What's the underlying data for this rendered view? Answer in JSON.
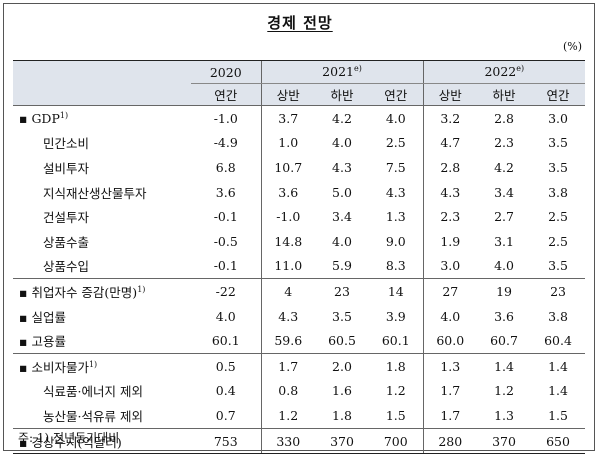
{
  "title": "경제 전망",
  "unit": "(%)",
  "header": {
    "y2020": "2020",
    "y2021": "2021",
    "y2021_sup": "e)",
    "y2022": "2022",
    "y2022_sup": "e)",
    "sub": [
      "연간",
      "상반",
      "하반",
      "연간",
      "상반",
      "하반",
      "연간"
    ]
  },
  "rows": [
    {
      "label": "▪ GDP",
      "sup": "1)",
      "values": [
        "-1.0",
        "3.7",
        "4.2",
        "4.0",
        "3.2",
        "2.8",
        "3.0"
      ]
    },
    {
      "label": "민간소비",
      "values": [
        "-4.9",
        "1.0",
        "4.0",
        "2.5",
        "4.7",
        "2.3",
        "3.5"
      ]
    },
    {
      "label": "설비투자",
      "values": [
        "6.8",
        "10.7",
        "4.3",
        "7.5",
        "2.8",
        "4.2",
        "3.5"
      ]
    },
    {
      "label": "지식재산생산물투자",
      "values": [
        "3.6",
        "3.6",
        "5.0",
        "4.3",
        "4.3",
        "3.4",
        "3.8"
      ]
    },
    {
      "label": "건설투자",
      "values": [
        "-0.1",
        "-1.0",
        "3.4",
        "1.3",
        "2.3",
        "2.7",
        "2.5"
      ]
    },
    {
      "label": "상품수출",
      "values": [
        "-0.5",
        "14.8",
        "4.0",
        "9.0",
        "1.9",
        "3.1",
        "2.5"
      ]
    },
    {
      "label": "상품수입",
      "values": [
        "-0.1",
        "11.0",
        "5.9",
        "8.3",
        "3.0",
        "4.0",
        "3.5"
      ]
    },
    {
      "label": "▪ 취업자수 증감(만명)",
      "sup": "1)",
      "values": [
        "-22",
        "4",
        "23",
        "14",
        "27",
        "19",
        "23"
      ]
    },
    {
      "label": "▪ 실업률",
      "values": [
        "4.0",
        "4.3",
        "3.5",
        "3.9",
        "4.0",
        "3.6",
        "3.8"
      ]
    },
    {
      "label": "▪ 고용률",
      "values": [
        "60.1",
        "59.6",
        "60.5",
        "60.1",
        "60.0",
        "60.7",
        "60.4"
      ]
    },
    {
      "label": "▪ 소비자물가",
      "sup": "1)",
      "values": [
        "0.5",
        "1.7",
        "2.0",
        "1.8",
        "1.3",
        "1.4",
        "1.4"
      ]
    },
    {
      "label": "식료품·에너지 제외",
      "values": [
        "0.4",
        "0.8",
        "1.6",
        "1.2",
        "1.7",
        "1.2",
        "1.4"
      ]
    },
    {
      "label": "농산물·석유류 제외",
      "values": [
        "0.7",
        "1.2",
        "1.8",
        "1.5",
        "1.7",
        "1.3",
        "1.5"
      ]
    },
    {
      "label": "▪ 경상수지(억달러)",
      "values": [
        "753",
        "330",
        "370",
        "700",
        "280",
        "370",
        "650"
      ]
    }
  ],
  "note": "주: 1) 전년동기대비"
}
